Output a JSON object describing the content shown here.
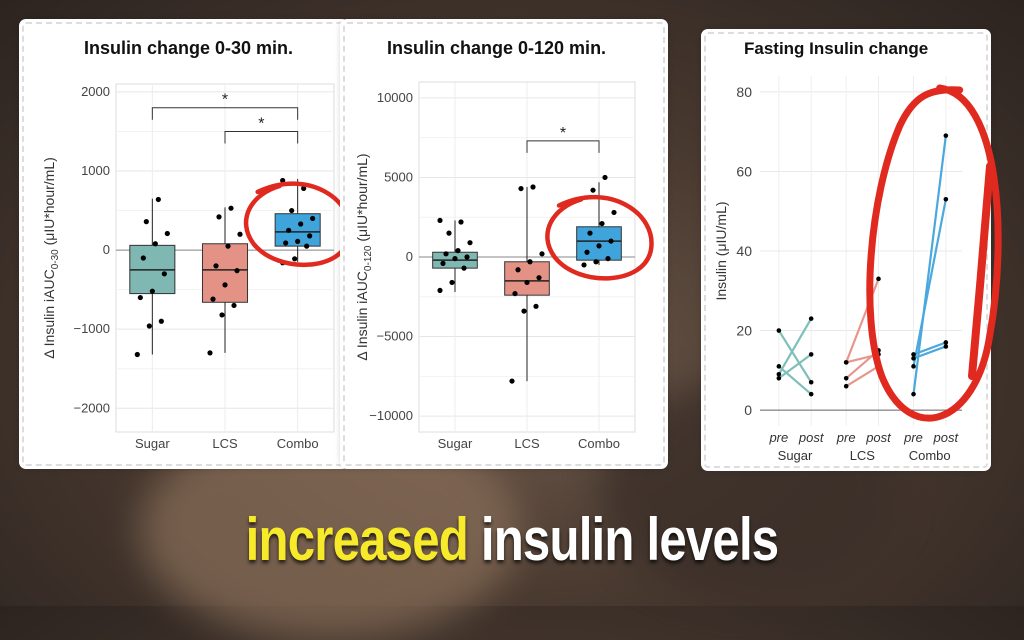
{
  "caption": {
    "highlight": "increased",
    "rest": "insulin levels"
  },
  "colors": {
    "sugar": "#7fbfba",
    "lcs": "#e8968c",
    "combo": "#4aa8dc",
    "annotation": "#e02a1f"
  },
  "chart_data": [
    {
      "type": "box",
      "title": "Insulin change 0-30 min.",
      "ylabel": "Δ Insulin  iAUC0-30 (μIU*hour/mL)",
      "ylabel_main": "Δ Insulin  iAUC",
      "ylabel_sub": "0-30",
      "ylabel_unit": " (μIU*hour/mL)",
      "ylim": [
        -2300,
        2100
      ],
      "yticks": [
        -2000,
        -1000,
        0,
        1000,
        2000
      ],
      "ytick_labels": [
        "−2000",
        "−1000",
        "0",
        "1000",
        "2000"
      ],
      "categories": [
        "Sugar",
        "LCS",
        "Combo"
      ],
      "boxes": [
        {
          "name": "Sugar",
          "q1": -550,
          "median": -250,
          "q3": 60,
          "min": -1320,
          "max": 650
        },
        {
          "name": "LCS",
          "q1": -660,
          "median": -250,
          "q3": 80,
          "min": -1300,
          "max": 540
        },
        {
          "name": "Combo",
          "q1": 50,
          "median": 230,
          "q3": 460,
          "min": -150,
          "max": 900
        }
      ],
      "points": [
        [
          -1320,
          -960,
          -900,
          -600,
          -520,
          -300,
          -100,
          80,
          210,
          360,
          640
        ],
        [
          -1300,
          -820,
          -700,
          -620,
          -440,
          -260,
          -200,
          50,
          200,
          420,
          530
        ],
        [
          -160,
          -110,
          50,
          90,
          110,
          180,
          250,
          330,
          400,
          500,
          780,
          880
        ]
      ],
      "brackets": [
        {
          "from": 0,
          "to": 2,
          "y": 1800,
          "label": "*"
        },
        {
          "from": 1,
          "to": 2,
          "y": 1500,
          "label": "*"
        }
      ],
      "annotation_circle": "Combo"
    },
    {
      "type": "box",
      "title": "Insulin change 0-120 min.",
      "ylabel": "Δ Insulin  iAUC0-120 (μIU*hour/mL)",
      "ylabel_main": "Δ Insulin  iAUC",
      "ylabel_sub": "0-120",
      "ylabel_unit": " (μIU*hour/mL)",
      "ylim": [
        -11000,
        11000
      ],
      "yticks": [
        -10000,
        -5000,
        0,
        5000,
        10000
      ],
      "ytick_labels": [
        "−10000",
        "−5000",
        "0",
        "5000",
        "10000"
      ],
      "categories": [
        "Sugar",
        "LCS",
        "Combo"
      ],
      "boxes": [
        {
          "name": "Sugar",
          "q1": -700,
          "median": -200,
          "q3": 300,
          "min": -2200,
          "max": 2300
        },
        {
          "name": "LCS",
          "q1": -2400,
          "median": -1500,
          "q3": -300,
          "min": -7800,
          "max": 4400
        },
        {
          "name": "Combo",
          "q1": -200,
          "median": 1000,
          "q3": 1900,
          "min": -500,
          "max": 4700
        }
      ],
      "points": [
        [
          -2100,
          -1600,
          -700,
          -400,
          -100,
          0,
          200,
          400,
          900,
          1500,
          2200,
          2300
        ],
        [
          -7800,
          -3400,
          -3100,
          -2300,
          -1600,
          -1300,
          -800,
          -300,
          200,
          4300,
          4400
        ],
        [
          -500,
          -300,
          -100,
          300,
          700,
          1000,
          1500,
          2100,
          2800,
          4200,
          5000
        ]
      ],
      "brackets": [
        {
          "from": 1,
          "to": 2,
          "y": 7300,
          "label": "*"
        }
      ],
      "annotation_circle": "Combo"
    },
    {
      "type": "line",
      "title": "Fasting Insulin change",
      "ylabel": "Insulin (μIU/mL)",
      "ylim": [
        -4,
        84
      ],
      "yticks": [
        0,
        20,
        40,
        60,
        80
      ],
      "x_sublabels": [
        "pre",
        "post"
      ],
      "groups": [
        "Sugar",
        "LCS",
        "Combo"
      ],
      "series": [
        {
          "group": "Sugar",
          "pairs": [
            [
              20,
              7
            ],
            [
              11,
              4
            ],
            [
              9,
              23
            ],
            [
              8,
              14
            ]
          ]
        },
        {
          "group": "LCS",
          "pairs": [
            [
              12,
              14
            ],
            [
              8,
              15
            ],
            [
              12,
              33
            ],
            [
              6,
              11
            ]
          ]
        },
        {
          "group": "Combo",
          "pairs": [
            [
              4,
              69
            ],
            [
              11,
              53
            ],
            [
              14,
              17
            ],
            [
              13,
              16
            ]
          ]
        }
      ],
      "annotation_circle": "Combo"
    }
  ]
}
